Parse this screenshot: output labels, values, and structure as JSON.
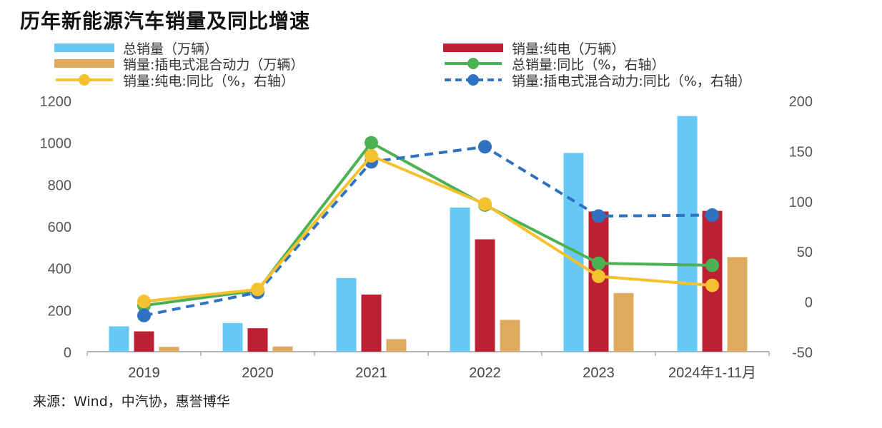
{
  "title": "历年新能源汽车销量及同比增速",
  "source": "来源：Wind，中汽协，惠誉博华",
  "colors": {
    "total_bar": "#66C8F5",
    "bev_bar": "#BE2033",
    "phev_bar": "#DDAA5E",
    "total_yoy": "#4CB152",
    "bev_yoy": "#F5C12E",
    "phev_yoy": "#2F72C2",
    "axis": "#999999"
  },
  "legend": [
    {
      "label": "总销量（万辆）",
      "type": "bar",
      "color_key": "total_bar"
    },
    {
      "label": "销量:纯电（万辆）",
      "type": "bar",
      "color_key": "bev_bar"
    },
    {
      "label": "销量:插电式混合动力（万辆）",
      "type": "bar",
      "color_key": "phev_bar"
    },
    {
      "label": "总销量:同比（%，右轴）",
      "type": "line",
      "color_key": "total_yoy"
    },
    {
      "label": "销量:纯电:同比（%，右轴）",
      "type": "line",
      "color_key": "bev_yoy"
    },
    {
      "label": "销量:插电式混合动力:同比（%，右轴）",
      "type": "dashed",
      "color_key": "phev_yoy"
    }
  ],
  "chart_data": {
    "type": "bar",
    "categories": [
      "2019",
      "2020",
      "2021",
      "2022",
      "2023",
      "2024年1-11月"
    ],
    "ylim": [
      0,
      1200
    ],
    "yticks": [
      "0",
      "200",
      "400",
      "600",
      "800",
      "1000",
      "1200"
    ],
    "y2lim": [
      -50,
      200
    ],
    "y2ticks": [
      "-50",
      "0",
      "50",
      "100",
      "150",
      "200"
    ],
    "series": [
      {
        "name": "总销量（万辆）",
        "kind": "bar",
        "axis": "left",
        "values": [
          121,
          137,
          352,
          689,
          950,
          1126
        ],
        "color_key": "total_bar"
      },
      {
        "name": "销量:纯电（万辆）",
        "kind": "bar",
        "axis": "left",
        "values": [
          97,
          112,
          273,
          537,
          670,
          673
        ],
        "color_key": "bev_bar"
      },
      {
        "name": "销量:插电式混合动力（万辆）",
        "kind": "bar",
        "axis": "left",
        "values": [
          23,
          25,
          60,
          152,
          280,
          452
        ],
        "color_key": "phev_bar"
      },
      {
        "name": "总销量:同比（%，右轴）",
        "kind": "line",
        "axis": "right",
        "values": [
          -4,
          11,
          158,
          96,
          38,
          36
        ],
        "color_key": "total_yoy"
      },
      {
        "name": "销量:纯电:同比（%，右轴）",
        "kind": "line",
        "axis": "right",
        "values": [
          0,
          12,
          145,
          97,
          25,
          16
        ],
        "color_key": "bev_yoy"
      },
      {
        "name": "销量:插电式混合动力:同比（%，右轴）",
        "kind": "dashed",
        "axis": "right",
        "values": [
          -14,
          9,
          139,
          154,
          85,
          86
        ],
        "color_key": "phev_yoy"
      }
    ],
    "grid": false,
    "legend_position": "top"
  }
}
